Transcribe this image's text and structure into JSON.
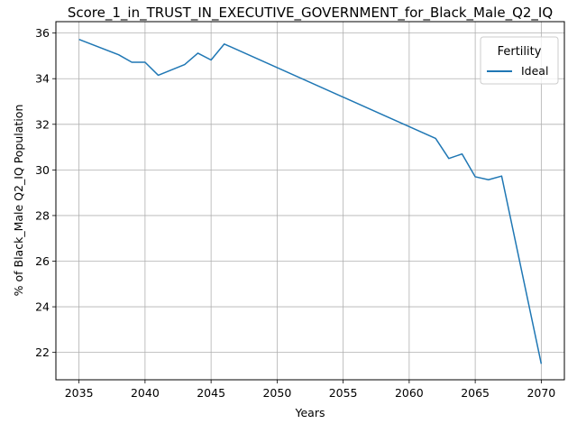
{
  "chart_data": {
    "type": "line",
    "title": "Score_1_in_TRUST_IN_EXECUTIVE_GOVERNMENT_for_Black_Male_Q2_IQ",
    "xlabel": "Years",
    "ylabel": "% of Black_Male Q2_IQ Population",
    "xlim": [
      2033.25,
      2071.75
    ],
    "ylim": [
      20.8,
      36.5
    ],
    "xticks": [
      2035,
      2040,
      2045,
      2050,
      2055,
      2060,
      2065,
      2070
    ],
    "yticks": [
      22,
      24,
      26,
      28,
      30,
      32,
      34,
      36
    ],
    "grid": true,
    "legend": {
      "title": "Fertility",
      "position": "top-right"
    },
    "series": [
      {
        "name": "Ideal",
        "color": "#1f77b4",
        "x": [
          2035,
          2038,
          2039,
          2040,
          2041,
          2043,
          2044,
          2045,
          2046,
          2062,
          2063,
          2064,
          2065,
          2066,
          2067,
          2070
        ],
        "y": [
          35.72,
          35.05,
          34.72,
          34.72,
          34.15,
          34.62,
          35.12,
          34.82,
          35.52,
          31.38,
          30.5,
          30.7,
          29.7,
          29.57,
          29.73,
          21.5
        ]
      }
    ]
  }
}
